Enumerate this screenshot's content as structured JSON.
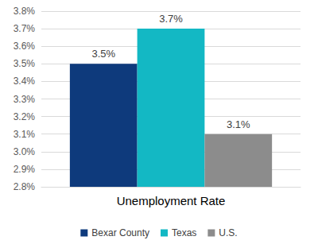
{
  "chart_data": {
    "type": "bar",
    "categories": [
      "Unemployment Rate"
    ],
    "series": [
      {
        "name": "Bexar County",
        "color": "#0e3a7c",
        "values": [
          3.5
        ],
        "value_labels": [
          "3.5%"
        ]
      },
      {
        "name": "Texas",
        "color": "#13b8c4",
        "values": [
          3.7
        ],
        "value_labels": [
          "3.7%"
        ]
      },
      {
        "name": "U.S.",
        "color": "#8c8c8c",
        "values": [
          3.1
        ],
        "value_labels": [
          "3.1%"
        ]
      }
    ],
    "ylim": [
      2.8,
      3.8
    ],
    "yticks": [
      {
        "value": 2.8,
        "label": "2.8%"
      },
      {
        "value": 2.9,
        "label": "2.9%"
      },
      {
        "value": 3.0,
        "label": "3.0%"
      },
      {
        "value": 3.1,
        "label": "3.1%"
      },
      {
        "value": 3.2,
        "label": "3.2%"
      },
      {
        "value": 3.3,
        "label": "3.3%"
      },
      {
        "value": 3.4,
        "label": "3.4%"
      },
      {
        "value": 3.5,
        "label": "3.5%"
      },
      {
        "value": 3.6,
        "label": "3.6%"
      },
      {
        "value": 3.7,
        "label": "3.7%"
      },
      {
        "value": 3.8,
        "label": "3.8%"
      }
    ],
    "grid": true,
    "legend": "bottom",
    "data_labels": true
  }
}
